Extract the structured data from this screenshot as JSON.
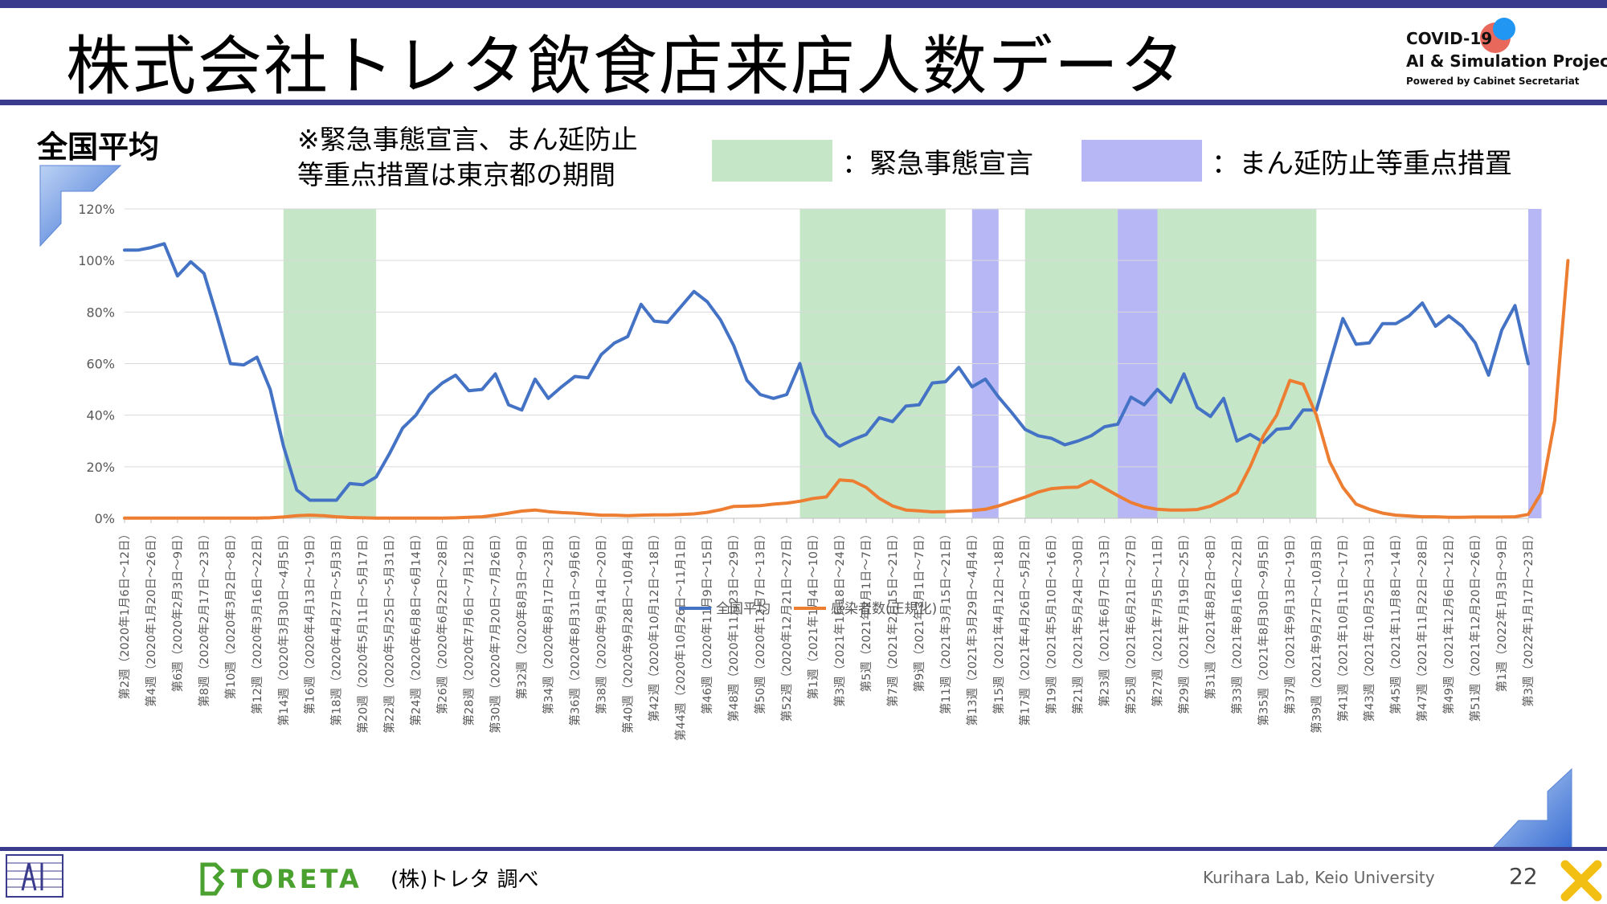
{
  "header": {
    "title": "株式会社トレタ飲食店来店人数データ",
    "logo_line1": "COVID-19",
    "logo_line2": "AI & Simulation Project",
    "logo_line3": "Powered by Cabinet Secretariat"
  },
  "section_label": "全国平均",
  "note": [
    "※緊急事態宣言、まん延防止",
    "等重点措置は東京都の期間"
  ],
  "legend_boxes": {
    "emergency_label": "：緊急事態宣言",
    "emergency_color": "#c6e6c8",
    "priority_label": "：まん延防止等重点措置",
    "priority_color": "#b7b7f6"
  },
  "footer": {
    "brand": "TORETA",
    "source": "(株)トレタ 調べ",
    "lab": "Kurihara Lab, Keio University",
    "page_number": "22"
  },
  "chart_data": {
    "type": "line",
    "ylim": [
      0,
      120
    ],
    "y_ticks": [
      "0%",
      "20%",
      "40%",
      "60%",
      "80%",
      "100%",
      "120%"
    ],
    "legend_position": "bottom",
    "x_tick_labels": [
      "第2週（2020年1月6日～12日）",
      "第4週（2020年1月20日～26日）",
      "第6週（2020年2月3日～9日）",
      "第8週（2020年2月17日～23日）",
      "第10週（2020年3月2日～8日）",
      "第12週（2020年3月16日～22日）",
      "第14週（2020年3月30日～4月5日）",
      "第16週（2020年4月13日～19日）",
      "第18週（2020年4月27日～5月3日）",
      "第20週（2020年5月11日～5月17日）",
      "第22週（2020年5月25日～5月31日）",
      "第24週（2020年6月8日～6月14日）",
      "第26週（2020年6月22日～28日）",
      "第28週（2020年7月6日～7月12日）",
      "第30週（2020年7月20日～7月26日）",
      "第32週（2020年8月3日～9日）",
      "第34週（2020年8月17日～23日）",
      "第36週（2020年8月31日～9月6日）",
      "第38週（2020年9月14日～20日）",
      "第40週（2020年9月28日～10月4日）",
      "第42週（2020年10月12日～18日）",
      "第44週（2020年10月26日～11月1日）",
      "第46週（2020年11月9日～15日）",
      "第48週（2020年11月23日～29日）",
      "第50週（2020年12月7日～13日）",
      "第52週（2020年12月21日～27日）",
      "第1週（2021年1月4日～10日）",
      "第3週（2021年1月18日～24日）",
      "第5週（2021年2月1日～7日）",
      "第7週（2021年2月15日～21日）",
      "第9週（2021年3月1日～7日）",
      "第11週（2021年3月15日～21日）",
      "第13週（2021年3月29日～4月4日）",
      "第15週（2021年4月12日～18日）",
      "第17週（2021年4月26日～5月2日）",
      "第19週（2021年5月10日～16日）",
      "第21週（2021年5月24日～30日）",
      "第23週（2021年6月7日～13日）",
      "第25週（2021年6月21日～27日）",
      "第27週（2021年7月5日～11日）",
      "第29週（2021年7月19日～25日）",
      "第31週（2021年8月2日～8日）",
      "第33週（2021年8月16日～22日）",
      "第35週（2021年8月30日～9月5日）",
      "第37週（2021年9月13日～19日）",
      "第39週（2021年9月27日～10月3日）",
      "第41週（2021年10月11日～17日）",
      "第43週（2021年10月25日～31日）",
      "第45週（2021年11月8日～14日）",
      "第47週（2021年11月22日～28日）",
      "第49週（2021年12月6日～12日）",
      "第51週（2021年12月20日～26日）",
      "第1週（2022年1月3日～9日）",
      "第3週（2022年1月17日～23日）"
    ],
    "emergency_periods": [
      [
        6,
        9.5
      ],
      [
        25.5,
        31
      ],
      [
        34,
        37.5
      ],
      [
        39,
        45
      ]
    ],
    "priority_periods": [
      [
        32,
        33
      ],
      [
        37.5,
        39
      ],
      [
        53,
        53.5
      ]
    ],
    "series": [
      {
        "name": "全国平均",
        "color": "#4472c4",
        "values": [
          104,
          104,
          105,
          106.5,
          94,
          99.5,
          95,
          78,
          60,
          59.5,
          62.5,
          50,
          28,
          11,
          7,
          7,
          7,
          13.5,
          13,
          16,
          25,
          35,
          40,
          48,
          52.5,
          55.5,
          49.5,
          50,
          56,
          44,
          42,
          54,
          46.5,
          51,
          55,
          54.5,
          63.5,
          68,
          70.5,
          83,
          76.5,
          76,
          82,
          88,
          84,
          77,
          67,
          53.5,
          48,
          46.5,
          48,
          60,
          41,
          32,
          28,
          30.5,
          32.5,
          39,
          37.5,
          43.5,
          44,
          52.5,
          53,
          58.5,
          51,
          54,
          47,
          41,
          34.5,
          32,
          31,
          28.5,
          30,
          32,
          35.5,
          36.5,
          47,
          44,
          50,
          45,
          56,
          43,
          39.5,
          46.5,
          30,
          32.5,
          29.5,
          34.5,
          35,
          42,
          42,
          60,
          77.5,
          67.5,
          68,
          75.5,
          75.5,
          78.5,
          83.5,
          74.5,
          78.5,
          74.5,
          68,
          55.5,
          73,
          82.5,
          60
        ]
      },
      {
        "name": "感染者数(正規化)",
        "color": "#ed7d31",
        "values": [
          0.1,
          0.1,
          0.1,
          0.1,
          0.1,
          0.1,
          0.1,
          0.1,
          0.1,
          0.1,
          0.1,
          0.2,
          0.5,
          1,
          1.2,
          1,
          0.6,
          0.3,
          0.2,
          0.1,
          0.1,
          0.1,
          0.1,
          0.1,
          0.1,
          0.2,
          0.4,
          0.6,
          1.2,
          2,
          2.8,
          3.2,
          2.6,
          2.2,
          2,
          1.6,
          1.2,
          1.2,
          1,
          1.2,
          1.3,
          1.3,
          1.5,
          1.7,
          2.3,
          3.3,
          4.6,
          4.7,
          4.9,
          5.5,
          5.9,
          6.6,
          7.7,
          8.3,
          14.9,
          14.5,
          12,
          7.7,
          4.8,
          3.2,
          2.9,
          2.5,
          2.6,
          2.8,
          3,
          3.5,
          4.8,
          6.5,
          8.2,
          10.2,
          11.5,
          11.9,
          12.1,
          14.6,
          11.7,
          8.8,
          6.1,
          4.4,
          3.5,
          3.2,
          3.2,
          3.4,
          4.7,
          7.1,
          10,
          20,
          32,
          40,
          53.5,
          52,
          40,
          22,
          12,
          5.5,
          3.5,
          2,
          1.2,
          0.9,
          0.6,
          0.6,
          0.4,
          0.4,
          0.5,
          0.5,
          0.5,
          0.6,
          1.5,
          10,
          38,
          100
        ]
      }
    ]
  }
}
